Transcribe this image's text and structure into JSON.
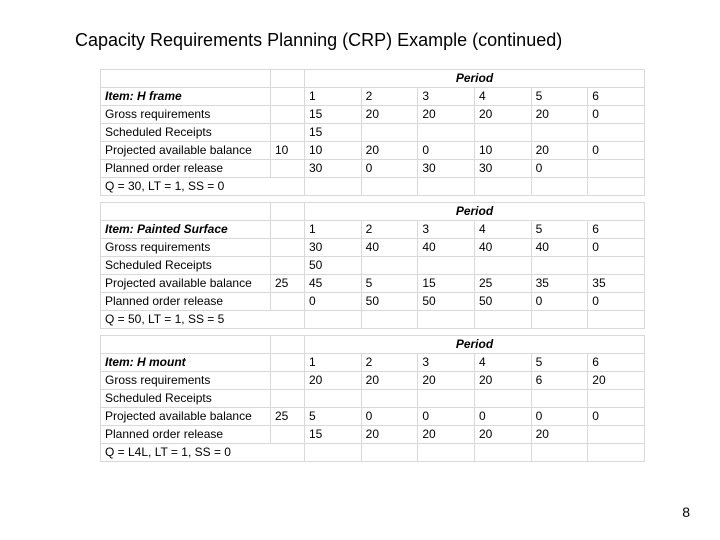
{
  "title": "Capacity Requirements Planning (CRP) Example (continued)",
  "page_number": "8",
  "row_labels": {
    "gross": "Gross requirements",
    "sched": "Scheduled Receipts",
    "pab": "Projected available balance",
    "por": "Planned order release"
  },
  "period_header": "Period",
  "periods": [
    "1",
    "2",
    "3",
    "4",
    "5",
    "6"
  ],
  "tables": [
    {
      "item": "Item: H frame",
      "init_pab": "10",
      "gross": [
        "15",
        "20",
        "20",
        "20",
        "20",
        "0"
      ],
      "sched": [
        "15",
        "",
        "",
        "",
        "",
        ""
      ],
      "pab": [
        "10",
        "20",
        "0",
        "10",
        "20",
        "0"
      ],
      "por": [
        "30",
        "0",
        "30",
        "30",
        "0",
        ""
      ],
      "footer": "Q = 30, LT = 1, SS = 0"
    },
    {
      "item": "Item: Painted Surface",
      "init_pab": "25",
      "gross": [
        "30",
        "40",
        "40",
        "40",
        "40",
        "0"
      ],
      "sched": [
        "50",
        "",
        "",
        "",
        "",
        ""
      ],
      "pab": [
        "45",
        "5",
        "15",
        "25",
        "35",
        "35"
      ],
      "por": [
        "0",
        "50",
        "50",
        "50",
        "0",
        "0"
      ],
      "footer": "Q = 50, LT = 1, SS = 5"
    },
    {
      "item": "Item: H mount",
      "init_pab": "25",
      "gross": [
        "20",
        "20",
        "20",
        "20",
        "6",
        "20"
      ],
      "sched": [
        "",
        "",
        "",
        "",
        "",
        ""
      ],
      "pab": [
        "5",
        "0",
        "0",
        "0",
        "0",
        "0"
      ],
      "por": [
        "15",
        "20",
        "20",
        "20",
        "20",
        ""
      ],
      "footer": "Q = L4L, LT = 1, SS = 0"
    }
  ]
}
